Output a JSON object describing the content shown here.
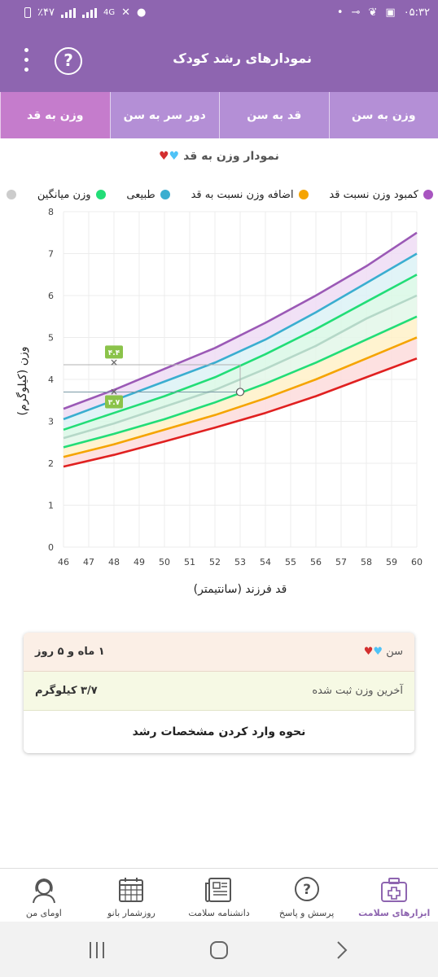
{
  "status_bar": {
    "time": "۰۵:۳۲",
    "battery": "٪۴۷",
    "network": "4G"
  },
  "header": {
    "title": "نمودارهای رشد کودک"
  },
  "tabs": [
    {
      "label": "وزن به سن",
      "active": false
    },
    {
      "label": "قد به سن",
      "active": false
    },
    {
      "label": "دور سر به سن",
      "active": false
    },
    {
      "label": "وزن به قد",
      "active": true
    }
  ],
  "chart_header": {
    "title": "نمودار وزن به قد"
  },
  "legend": [
    {
      "label": "کمبود وزن نسبت قد",
      "color": "#a855c0"
    },
    {
      "label": "اضافه وزن نسبت به قد",
      "color": "#f5a400"
    },
    {
      "label": "طبیعی",
      "color": "#3aaed0"
    },
    {
      "label": "وزن میانگین",
      "color": "#22dd77"
    },
    {
      "label": "",
      "color": "#cccccc"
    }
  ],
  "chart_data": {
    "type": "line",
    "xlabel": "قد فرزند (سانتیمتر)",
    "ylabel": "وزن (کیلوگرم)",
    "xlim": [
      46,
      60
    ],
    "ylim": [
      0,
      8
    ],
    "xticks": [
      "46",
      "47",
      "48",
      "49",
      "50",
      "51",
      "52",
      "53",
      "54",
      "55",
      "56",
      "57",
      "58",
      "59",
      "60"
    ],
    "yticks": [
      "0",
      "1",
      "2",
      "3",
      "4",
      "5",
      "6",
      "7",
      "8"
    ],
    "x": [
      46,
      48,
      50,
      52,
      54,
      56,
      58,
      60
    ],
    "curves": [
      {
        "color": "#9b59b6",
        "values": [
          3.3,
          3.75,
          4.25,
          4.75,
          5.35,
          6.0,
          6.7,
          7.5
        ]
      },
      {
        "color": "#3aaed0",
        "values": [
          3.05,
          3.5,
          3.95,
          4.4,
          4.95,
          5.6,
          6.3,
          7.0
        ]
      },
      {
        "color": "#22dd77",
        "values": [
          2.8,
          3.2,
          3.6,
          4.05,
          4.6,
          5.2,
          5.85,
          6.5
        ]
      },
      {
        "color": "#b5d8c8",
        "values": [
          2.6,
          2.95,
          3.35,
          3.75,
          4.25,
          4.8,
          5.45,
          6.0
        ]
      },
      {
        "color": "#22dd77",
        "values": [
          2.38,
          2.7,
          3.05,
          3.45,
          3.9,
          4.4,
          4.95,
          5.5
        ]
      },
      {
        "color": "#f5a400",
        "values": [
          2.15,
          2.45,
          2.8,
          3.15,
          3.55,
          4.0,
          4.5,
          5.0
        ]
      },
      {
        "color": "#e02020",
        "values": [
          1.92,
          2.2,
          2.52,
          2.85,
          3.2,
          3.6,
          4.05,
          4.5
        ]
      }
    ],
    "markers": [
      {
        "x": 48,
        "y": 4.4,
        "label": "۴.۴"
      },
      {
        "x": 48,
        "y": 3.7,
        "label": "۳.۷"
      }
    ],
    "current_point": {
      "x": 53,
      "y": 3.7
    }
  },
  "info_card": {
    "age_label": "سن",
    "age_value": "۱ ماه و ۵ روز",
    "weight_label": "آخرین وزن ثبت شده",
    "weight_value": "۳/۷ کیلوگرم",
    "link_label": "نحوه وارد کردن مشخصات رشد"
  },
  "bottom_nav": [
    {
      "label": "ابزارهای سلامت",
      "icon": "first-aid-kit-icon",
      "active": true
    },
    {
      "label": "پرسش و پاسخ",
      "icon": "question-bubble-icon",
      "active": false
    },
    {
      "label": "دانشنامه سلامت",
      "icon": "newspaper-icon",
      "active": false
    },
    {
      "label": "روزشمار بانو",
      "icon": "calendar-icon",
      "active": false
    },
    {
      "label": "اومای من",
      "icon": "woman-avatar-icon",
      "active": false
    }
  ]
}
